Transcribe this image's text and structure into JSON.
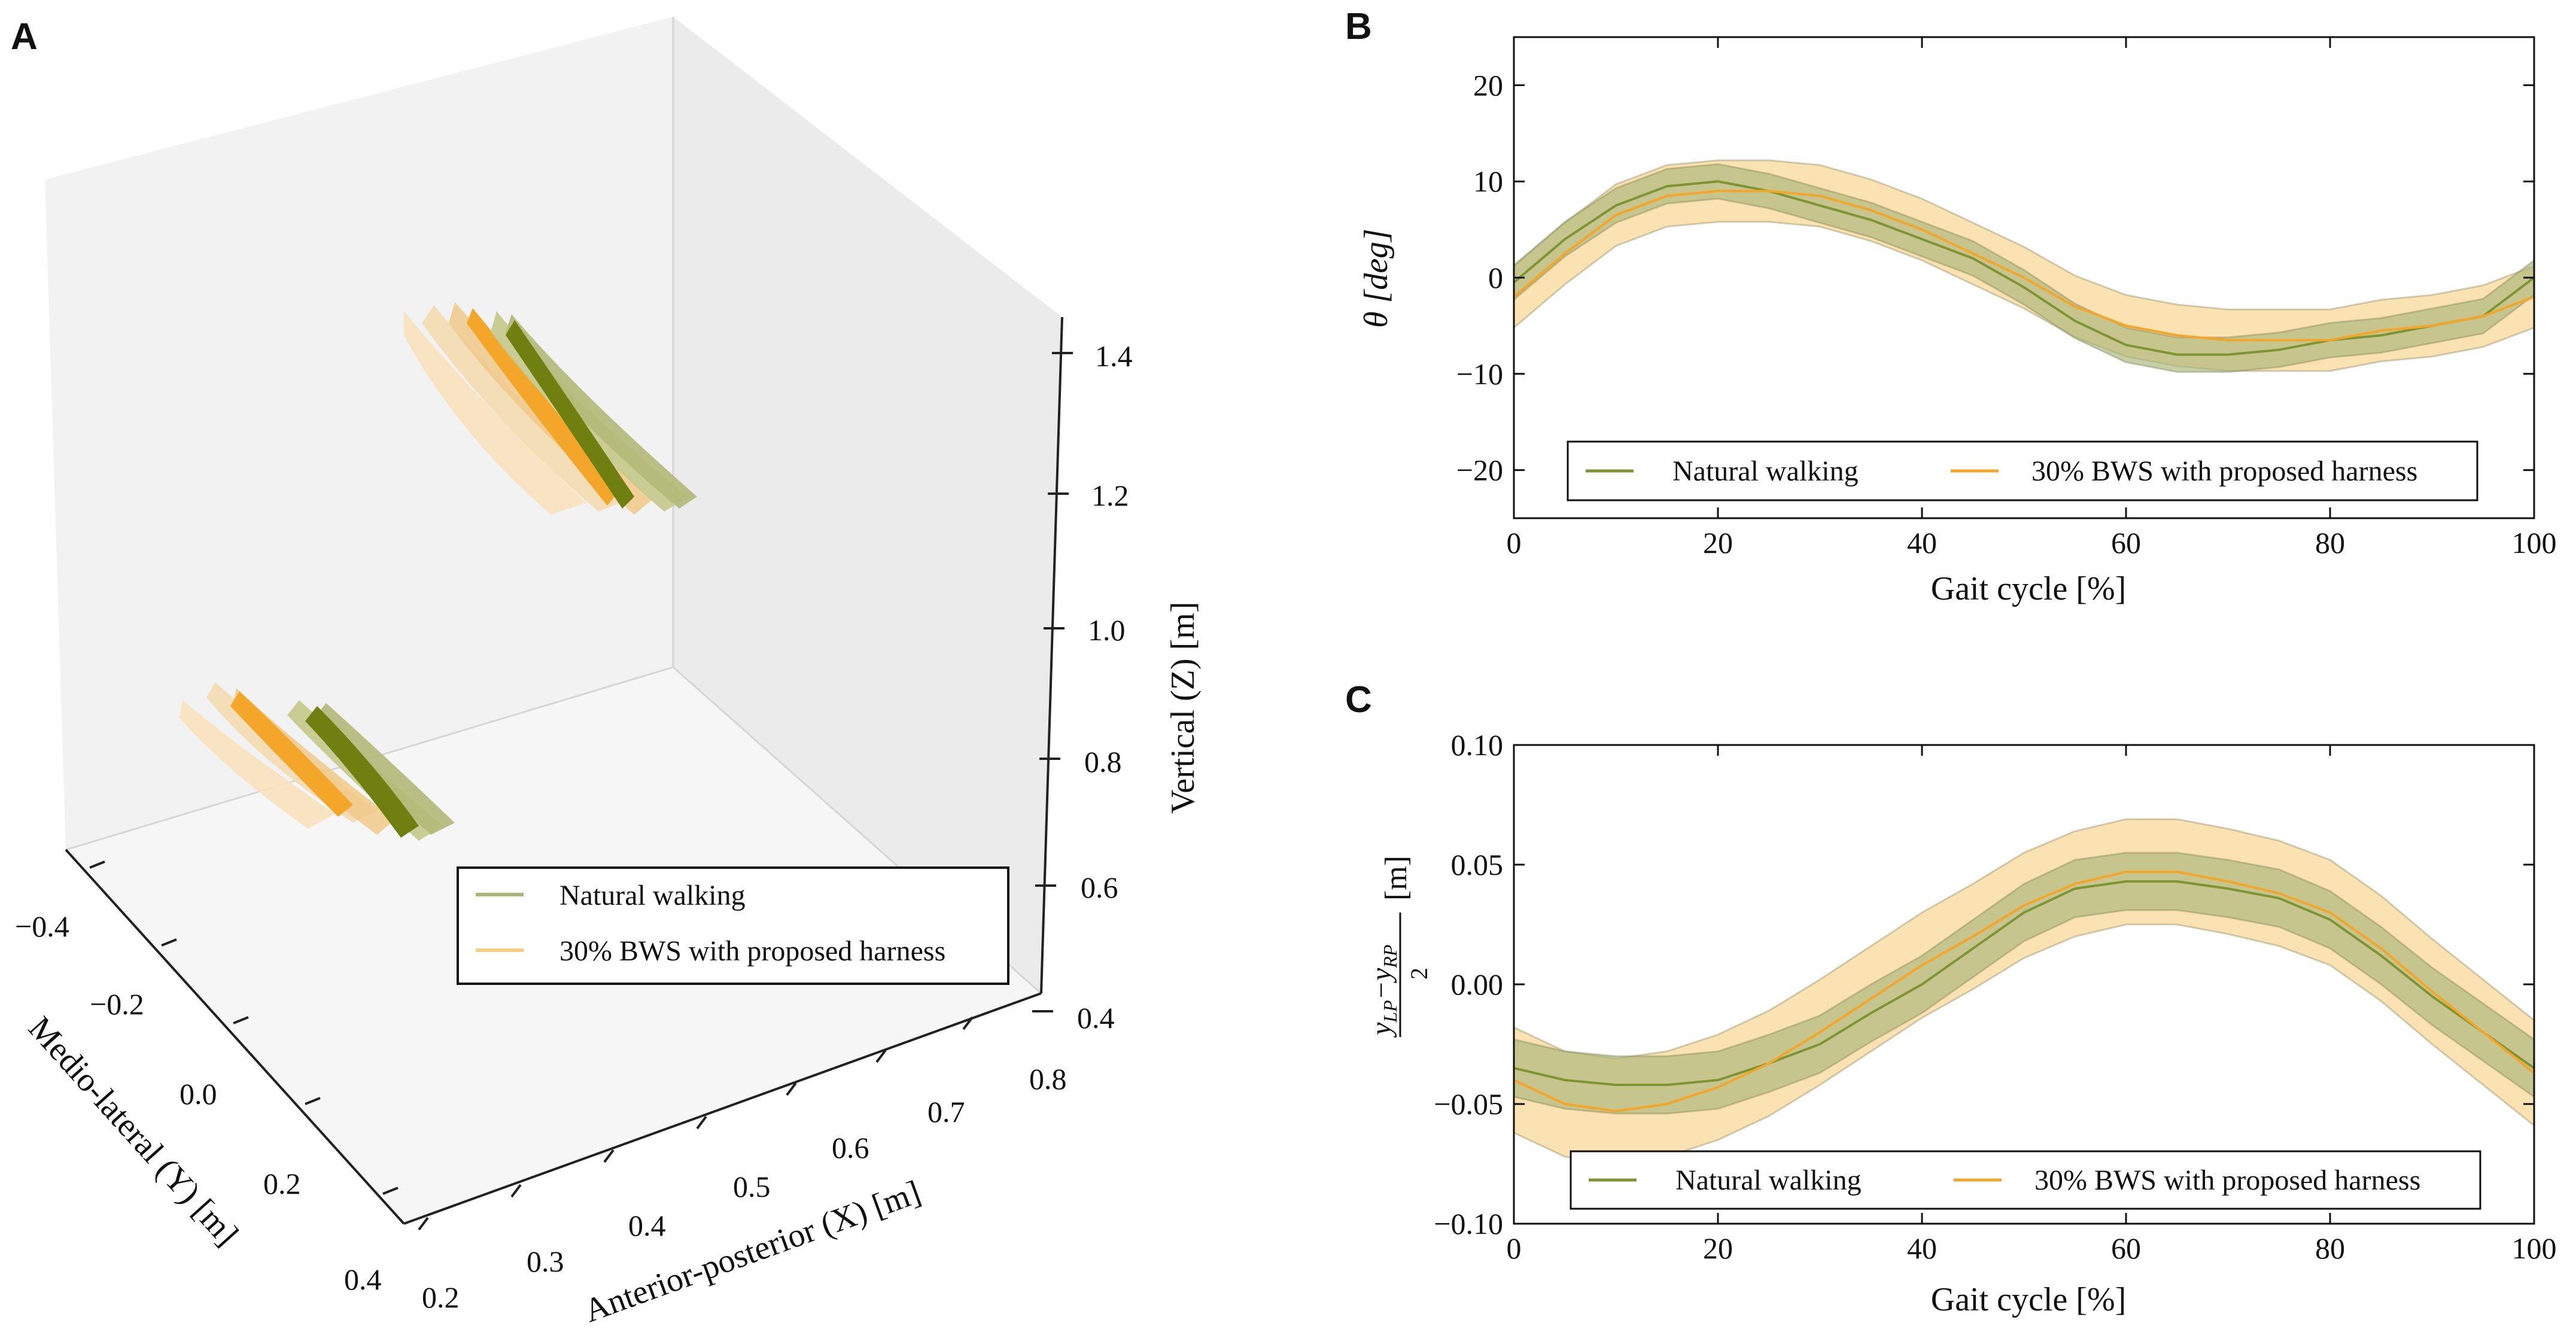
{
  "panels": {
    "a": "A",
    "b": "B",
    "c": "C"
  },
  "colors": {
    "natural_line": "#7f9433",
    "natural_fill": "#a9b67a",
    "natural_dark": "#6f7f10",
    "bws_line": "#f4a62a",
    "bws_fill": "#f6cf7e",
    "bws_light": "#f8e2bd"
  },
  "chart_data": [
    {
      "id": "A",
      "type": "scatter",
      "projection": "3d",
      "xlabel": "Anterior-posterior (X) [m]",
      "ylabel": "Medio-lateral (Y) [m]",
      "zlabel": "Vertical (Z) [m]",
      "x_ticks": [
        "0.2",
        "0.3",
        "0.4",
        "0.5",
        "0.6",
        "0.7",
        "0.8"
      ],
      "y_ticks": [
        "−0.4",
        "−0.2",
        "0.0",
        "0.2",
        "0.4"
      ],
      "z_ticks": [
        "0.4",
        "0.6",
        "0.8",
        "1.0",
        "1.2",
        "1.4"
      ],
      "legend": [
        "Natural walking",
        "30% BWS with proposed harness"
      ],
      "clusters": [
        {
          "name": "upper",
          "z_range": [
            1.2,
            1.4
          ]
        },
        {
          "name": "lower",
          "z_range": [
            0.8,
            0.9
          ]
        }
      ]
    },
    {
      "id": "B",
      "type": "line",
      "xlabel": "Gait cycle [%]",
      "ylabel": "θ [deg]",
      "xlim": [
        0,
        100
      ],
      "ylim": [
        -25,
        25
      ],
      "x_ticks": [
        0,
        20,
        40,
        60,
        80,
        100
      ],
      "y_ticks": [
        -20,
        -10,
        0,
        10,
        20
      ],
      "x": [
        0,
        5,
        10,
        15,
        20,
        25,
        30,
        35,
        40,
        45,
        50,
        55,
        60,
        65,
        70,
        75,
        80,
        85,
        90,
        95,
        100
      ],
      "series": [
        {
          "name": "Natural walking",
          "mean": [
            -0.5,
            4,
            7.5,
            9.5,
            10,
            9,
            7.5,
            6,
            4,
            2,
            -1,
            -4.5,
            -7,
            -8,
            -8,
            -7.5,
            -6.5,
            -6,
            -5,
            -4,
            0
          ],
          "band": 1.8
        },
        {
          "name": "30% BWS with proposed harness",
          "mean": [
            -2,
            2.5,
            6.5,
            8.5,
            9,
            9,
            8.5,
            7,
            5,
            2.5,
            0,
            -3,
            -5,
            -6,
            -6.5,
            -6.5,
            -6.5,
            -5.5,
            -5,
            -4,
            -2
          ],
          "band": 3.2
        }
      ],
      "legend": [
        "Natural walking",
        "30% BWS with proposed harness"
      ]
    },
    {
      "id": "C",
      "type": "line",
      "xlabel": "Gait cycle [%]",
      "ylabel_parts": [
        "y",
        "LP",
        "−y",
        "RP",
        "2",
        "[m]"
      ],
      "xlim": [
        0,
        100
      ],
      "ylim": [
        -0.1,
        0.1
      ],
      "x_ticks": [
        0,
        20,
        40,
        60,
        80,
        100
      ],
      "y_ticks": [
        "−0.10",
        "−0.05",
        "0.00",
        "0.05",
        "0.10"
      ],
      "y_tick_values": [
        -0.1,
        -0.05,
        0,
        0.05,
        0.1
      ],
      "x": [
        0,
        5,
        10,
        15,
        20,
        25,
        30,
        35,
        40,
        45,
        50,
        55,
        60,
        65,
        70,
        75,
        80,
        85,
        90,
        95,
        100
      ],
      "series": [
        {
          "name": "Natural walking",
          "mean": [
            -0.035,
            -0.04,
            -0.042,
            -0.042,
            -0.04,
            -0.033,
            -0.025,
            -0.012,
            0.0,
            0.015,
            0.03,
            0.04,
            0.043,
            0.043,
            0.04,
            0.036,
            0.027,
            0.012,
            -0.005,
            -0.02,
            -0.035
          ],
          "band": 0.012
        },
        {
          "name": "30% BWS with proposed harness",
          "mean": [
            -0.04,
            -0.05,
            -0.053,
            -0.05,
            -0.043,
            -0.033,
            -0.02,
            -0.006,
            0.008,
            0.02,
            0.033,
            0.042,
            0.047,
            0.047,
            0.043,
            0.038,
            0.03,
            0.015,
            -0.003,
            -0.02,
            -0.037
          ],
          "band": 0.022
        }
      ],
      "legend": [
        "Natural walking",
        "30% BWS with proposed harness"
      ]
    }
  ]
}
